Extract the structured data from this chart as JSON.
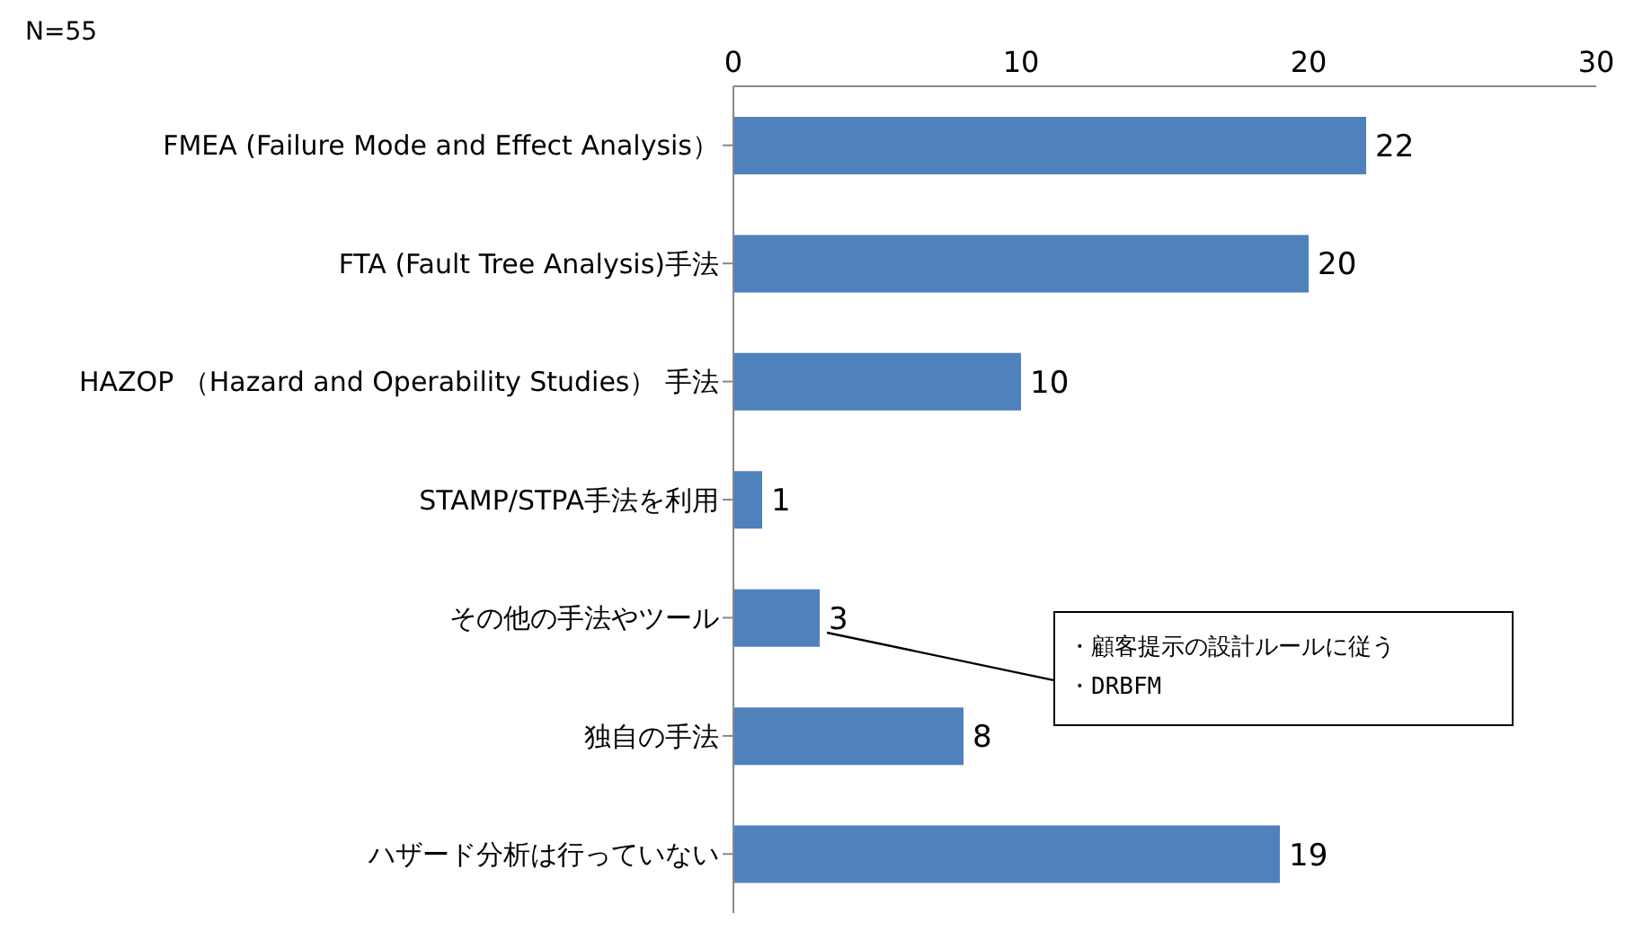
{
  "chart_data": {
    "type": "bar",
    "orientation": "horizontal",
    "categories": [
      "FMEA (Failure Mode and Effect Analysis）",
      "FTA (Fault Tree Analysis)手法",
      "HAZOP （Hazard and Operability Studies） 手法",
      "STAMP/STPA手法を利用",
      "その他の手法やツール",
      "独自の手法",
      "ハザード分析は行っていない"
    ],
    "values": [
      22,
      20,
      10,
      1,
      3,
      8,
      19
    ],
    "color": "#4f81bd",
    "xlim": [
      0,
      30
    ],
    "xticks": [
      0,
      10,
      20,
      30
    ],
    "data_labels": true,
    "grid": false,
    "legend": false,
    "annotations": [
      "N=55",
      {
        "text": "・顧客提示の設計ルールに従う",
        "x": 3,
        "y": "その他の手法やツール"
      },
      {
        "text": "・DRBFM",
        "x": 3,
        "y": "その他の手法やツール"
      }
    ]
  }
}
